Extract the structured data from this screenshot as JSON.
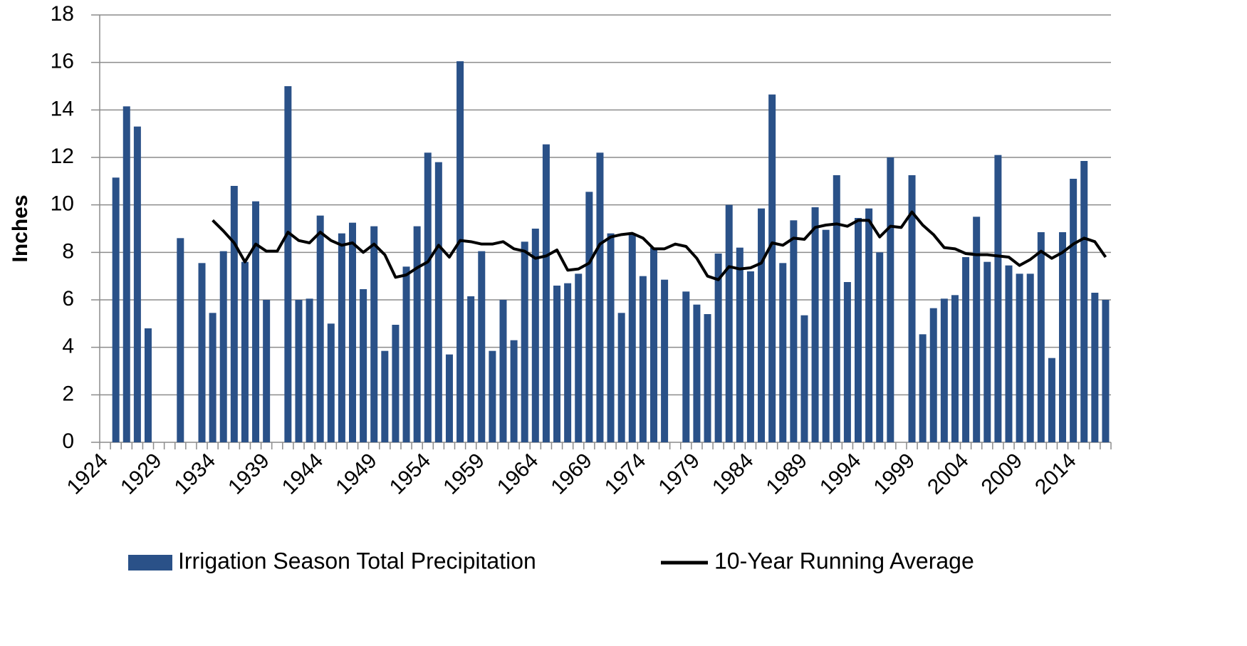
{
  "chart_data": {
    "type": "bar",
    "y_label": "Inches",
    "categories": [
      "1924",
      null,
      null,
      null,
      null,
      "1929",
      null,
      null,
      null,
      null,
      "1934",
      null,
      null,
      null,
      null,
      "1939",
      null,
      null,
      null,
      null,
      "1944",
      null,
      null,
      null,
      null,
      "1949",
      null,
      null,
      null,
      null,
      "1954",
      null,
      null,
      null,
      null,
      "1959",
      null,
      null,
      null,
      null,
      "1964",
      null,
      null,
      null,
      null,
      "1969",
      null,
      null,
      null,
      null,
      "1974",
      null,
      null,
      null,
      null,
      "1979",
      null,
      null,
      null,
      null,
      "1984",
      null,
      null,
      null,
      null,
      "1989",
      null,
      null,
      null,
      null,
      "1994",
      null,
      null,
      null,
      null,
      "1999",
      null,
      null,
      null,
      null,
      "2004",
      null,
      null,
      null,
      null,
      "2009",
      null,
      null,
      null,
      null,
      "2014",
      null,
      null,
      null
    ],
    "series": [
      {
        "name": "Irrigation Season Total Precipitation",
        "type": "bar",
        "color": "#2a5188",
        "values": [
          null,
          11.15,
          14.15,
          13.3,
          4.8,
          null,
          null,
          8.6,
          null,
          7.55,
          5.45,
          8.05,
          10.8,
          7.6,
          10.15,
          6.0,
          null,
          15.0,
          6.0,
          6.05,
          9.55,
          5.0,
          8.8,
          9.25,
          6.45,
          9.1,
          3.85,
          4.95,
          7.4,
          9.1,
          12.2,
          11.8,
          3.7,
          16.05,
          6.15,
          8.05,
          3.85,
          6.0,
          4.3,
          8.45,
          9.0,
          12.55,
          6.6,
          6.7,
          7.1,
          10.55,
          12.2,
          8.8,
          5.45,
          8.75,
          7.0,
          8.2,
          6.85,
          null,
          6.35,
          5.8,
          5.4,
          7.95,
          10.0,
          8.2,
          7.2,
          9.85,
          14.65,
          7.55,
          9.35,
          5.35,
          9.9,
          8.95,
          11.25,
          6.75,
          9.45,
          9.85,
          8.0,
          12.0,
          null,
          11.25,
          4.55,
          5.65,
          6.05,
          6.2,
          7.8,
          9.5,
          7.6,
          12.1,
          7.45,
          7.1,
          7.1,
          8.85,
          3.55,
          8.85,
          11.1,
          11.85,
          6.3,
          6.0
        ]
      },
      {
        "name": "10-Year Running Average",
        "type": "line",
        "color": "#000000",
        "values": [
          null,
          null,
          null,
          null,
          null,
          null,
          null,
          null,
          null,
          null,
          9.35,
          8.9,
          8.4,
          7.6,
          8.35,
          8.05,
          8.05,
          8.85,
          8.5,
          8.4,
          8.85,
          8.5,
          8.3,
          8.4,
          8.0,
          8.35,
          7.9,
          6.95,
          7.05,
          7.35,
          7.6,
          8.3,
          7.8,
          8.5,
          8.45,
          8.35,
          8.35,
          8.45,
          8.15,
          8.05,
          7.75,
          7.85,
          8.1,
          7.25,
          7.3,
          7.55,
          8.35,
          8.65,
          8.75,
          8.8,
          8.6,
          8.15,
          8.15,
          8.35,
          8.25,
          7.75,
          7.0,
          6.85,
          7.4,
          7.3,
          7.35,
          7.55,
          8.4,
          8.3,
          8.6,
          8.55,
          9.05,
          9.15,
          9.2,
          9.1,
          9.35,
          9.35,
          8.65,
          9.1,
          9.05,
          9.7,
          9.15,
          8.75,
          8.2,
          8.15,
          7.95,
          7.9,
          7.9,
          7.85,
          7.8,
          7.45,
          7.7,
          8.05,
          7.75,
          8.0,
          8.35,
          8.6,
          8.45,
          7.8
        ]
      }
    ],
    "ylim": [
      0,
      18
    ],
    "yticks": [
      0,
      2,
      4,
      6,
      8,
      10,
      12,
      14,
      16,
      18
    ],
    "grid": true,
    "legend": "bottom"
  }
}
